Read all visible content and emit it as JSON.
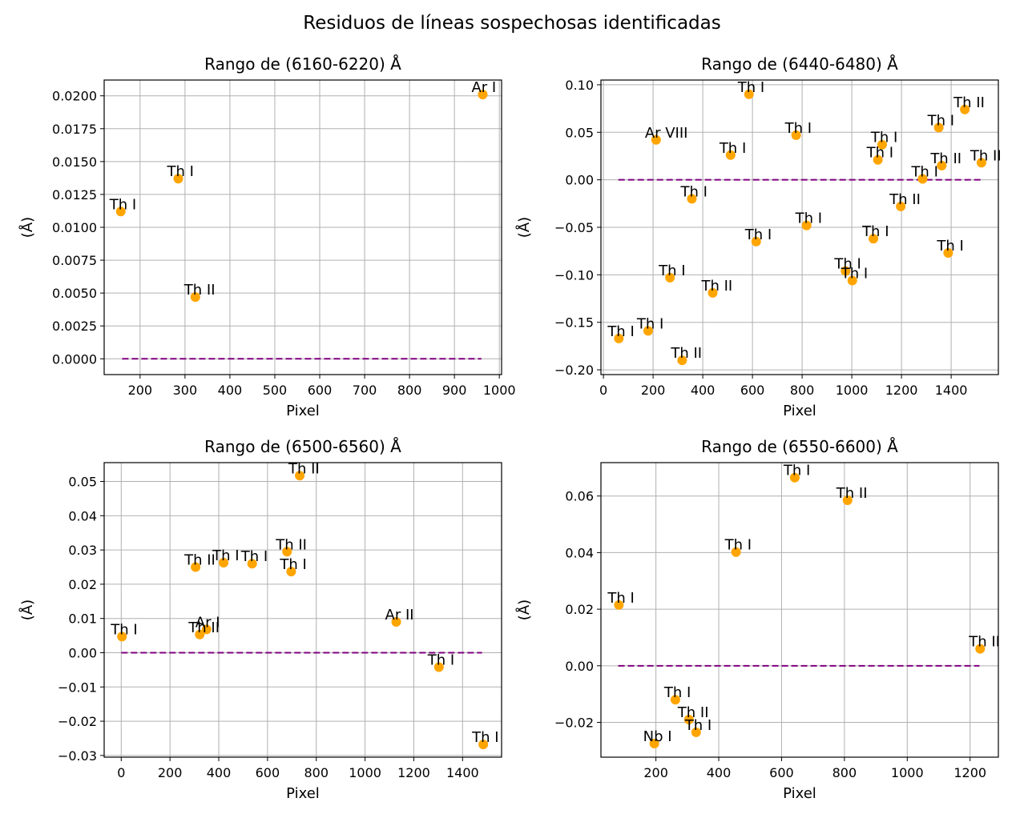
{
  "figure": {
    "suptitle": "Residuos de líneas sospechosas identificadas"
  },
  "colors": {
    "marker": "#FFA500",
    "zero_line": "#800080",
    "grid": "#b0b0b0",
    "axes": "#000000"
  },
  "chart_data": [
    {
      "type": "scatter",
      "title": "Rango de (6160-6220) Å",
      "xlabel": "Pixel",
      "ylabel": "(Å)",
      "xlim": [
        120,
        1005
      ],
      "ylim": [
        -0.0012,
        0.0212
      ],
      "xticks": [
        200,
        300,
        400,
        500,
        600,
        700,
        800,
        900,
        1000
      ],
      "yticks": [
        0.0,
        0.0025,
        0.005,
        0.0075,
        0.01,
        0.0125,
        0.015,
        0.0175,
        0.02
      ],
      "ytick_labels": [
        "0.0000",
        "0.0025",
        "0.0050",
        "0.0075",
        "0.0100",
        "0.0125",
        "0.0150",
        "0.0175",
        "0.0200"
      ],
      "zero_line": [
        160,
        960
      ],
      "grid": true,
      "points": [
        {
          "x": 157,
          "y": 0.0112,
          "label": "Th I"
        },
        {
          "x": 285,
          "y": 0.0137,
          "label": "Th I"
        },
        {
          "x": 323,
          "y": 0.0047,
          "label": "Th II"
        },
        {
          "x": 963,
          "y": 0.0201,
          "label": "Ar I"
        }
      ]
    },
    {
      "type": "scatter",
      "title": "Rango de (6440-6480) Å",
      "xlabel": "Pixel",
      "ylabel": "(Å)",
      "xlim": [
        -10,
        1590
      ],
      "ylim": [
        -0.205,
        0.105
      ],
      "xticks": [
        0,
        200,
        400,
        600,
        800,
        1000,
        1200,
        1400
      ],
      "yticks": [
        -0.2,
        -0.15,
        -0.1,
        -0.05,
        0.0,
        0.05,
        0.1
      ],
      "ytick_labels": [
        "−0.20",
        "−0.15",
        "−0.10",
        "−0.05",
        "0.00",
        "0.05",
        "0.10"
      ],
      "zero_line": [
        60,
        1520
      ],
      "grid": true,
      "points": [
        {
          "x": 62,
          "y": -0.167,
          "label": "Th I"
        },
        {
          "x": 180,
          "y": -0.159,
          "label": "Th I"
        },
        {
          "x": 212,
          "y": 0.042,
          "label": "Ar VIII"
        },
        {
          "x": 268,
          "y": -0.103,
          "label": "Th I"
        },
        {
          "x": 317,
          "y": -0.19,
          "label": "Th II"
        },
        {
          "x": 356,
          "y": -0.02,
          "label": "Th I"
        },
        {
          "x": 440,
          "y": -0.119,
          "label": "Th II"
        },
        {
          "x": 512,
          "y": 0.026,
          "label": "Th I"
        },
        {
          "x": 586,
          "y": 0.09,
          "label": "Th I"
        },
        {
          "x": 615,
          "y": -0.065,
          "label": "Th I"
        },
        {
          "x": 776,
          "y": 0.047,
          "label": "Th I"
        },
        {
          "x": 818,
          "y": -0.048,
          "label": "Th I"
        },
        {
          "x": 975,
          "y": -0.096,
          "label": "Th I"
        },
        {
          "x": 1002,
          "y": -0.106,
          "label": "Th I"
        },
        {
          "x": 1087,
          "y": -0.062,
          "label": "Th I"
        },
        {
          "x": 1105,
          "y": 0.021,
          "label": "Th I"
        },
        {
          "x": 1122,
          "y": 0.037,
          "label": "Th I"
        },
        {
          "x": 1197,
          "y": -0.028,
          "label": "Th II"
        },
        {
          "x": 1285,
          "y": 0.001,
          "label": "Th I"
        },
        {
          "x": 1350,
          "y": 0.055,
          "label": "Th I"
        },
        {
          "x": 1362,
          "y": 0.015,
          "label": "Th II"
        },
        {
          "x": 1388,
          "y": -0.077,
          "label": "Th I"
        },
        {
          "x": 1455,
          "y": 0.074,
          "label": "Th II"
        },
        {
          "x": 1522,
          "y": 0.018,
          "label": "Th II"
        }
      ]
    },
    {
      "type": "scatter",
      "title": "Rango de (6500-6560) Å",
      "xlabel": "Pixel",
      "ylabel": "(Å)",
      "xlim": [
        -70,
        1560
      ],
      "ylim": [
        -0.0305,
        0.0555
      ],
      "xticks": [
        0,
        200,
        400,
        600,
        800,
        1000,
        1200,
        1400
      ],
      "yticks": [
        -0.03,
        -0.02,
        -0.01,
        0.0,
        0.01,
        0.02,
        0.03,
        0.04,
        0.05
      ],
      "ytick_labels": [
        "−0.03",
        "−0.02",
        "−0.01",
        "0.00",
        "0.01",
        "0.02",
        "0.03",
        "0.04",
        "0.05"
      ],
      "zero_line": [
        0,
        1480
      ],
      "grid": true,
      "points": [
        {
          "x": 3,
          "y": 0.0047,
          "label": "Th I"
        },
        {
          "x": 305,
          "y": 0.025,
          "label": "Th II"
        },
        {
          "x": 322,
          "y": 0.0053,
          "label": "Th II"
        },
        {
          "x": 350,
          "y": 0.0068,
          "label": "Ar I"
        },
        {
          "x": 420,
          "y": 0.0263,
          "label": "Th I"
        },
        {
          "x": 537,
          "y": 0.026,
          "label": "Th I"
        },
        {
          "x": 680,
          "y": 0.0295,
          "label": "Th II"
        },
        {
          "x": 697,
          "y": 0.0237,
          "label": "Th I"
        },
        {
          "x": 732,
          "y": 0.0517,
          "label": "Th II"
        },
        {
          "x": 1128,
          "y": 0.009,
          "label": "Ar II"
        },
        {
          "x": 1303,
          "y": -0.0042,
          "label": "Th I"
        },
        {
          "x": 1485,
          "y": -0.0268,
          "label": "Th I"
        }
      ]
    },
    {
      "type": "scatter",
      "title": "Rango de (6550-6600) Å",
      "xlabel": "Pixel",
      "ylabel": "(Å)",
      "xlim": [
        25,
        1290
      ],
      "ylim": [
        -0.0323,
        0.0718
      ],
      "xticks": [
        200,
        400,
        600,
        800,
        1000,
        1200
      ],
      "yticks": [
        -0.02,
        0.0,
        0.02,
        0.04,
        0.06
      ],
      "ytick_labels": [
        "−0.02",
        "0.00",
        "0.02",
        "0.04",
        "0.06"
      ],
      "zero_line": [
        80,
        1230
      ],
      "grid": true,
      "points": [
        {
          "x": 82,
          "y": 0.0215,
          "label": "Th I"
        },
        {
          "x": 195,
          "y": -0.0275,
          "label": "Nb I"
        },
        {
          "x": 262,
          "y": -0.012,
          "label": "Th I"
        },
        {
          "x": 305,
          "y": -0.019,
          "label": "Th II"
        },
        {
          "x": 328,
          "y": -0.0235,
          "label": "Th I"
        },
        {
          "x": 455,
          "y": 0.0402,
          "label": "Th I"
        },
        {
          "x": 642,
          "y": 0.0665,
          "label": "Th I"
        },
        {
          "x": 810,
          "y": 0.0585,
          "label": "Th II"
        },
        {
          "x": 1232,
          "y": 0.006,
          "label": "Th II"
        }
      ]
    }
  ]
}
